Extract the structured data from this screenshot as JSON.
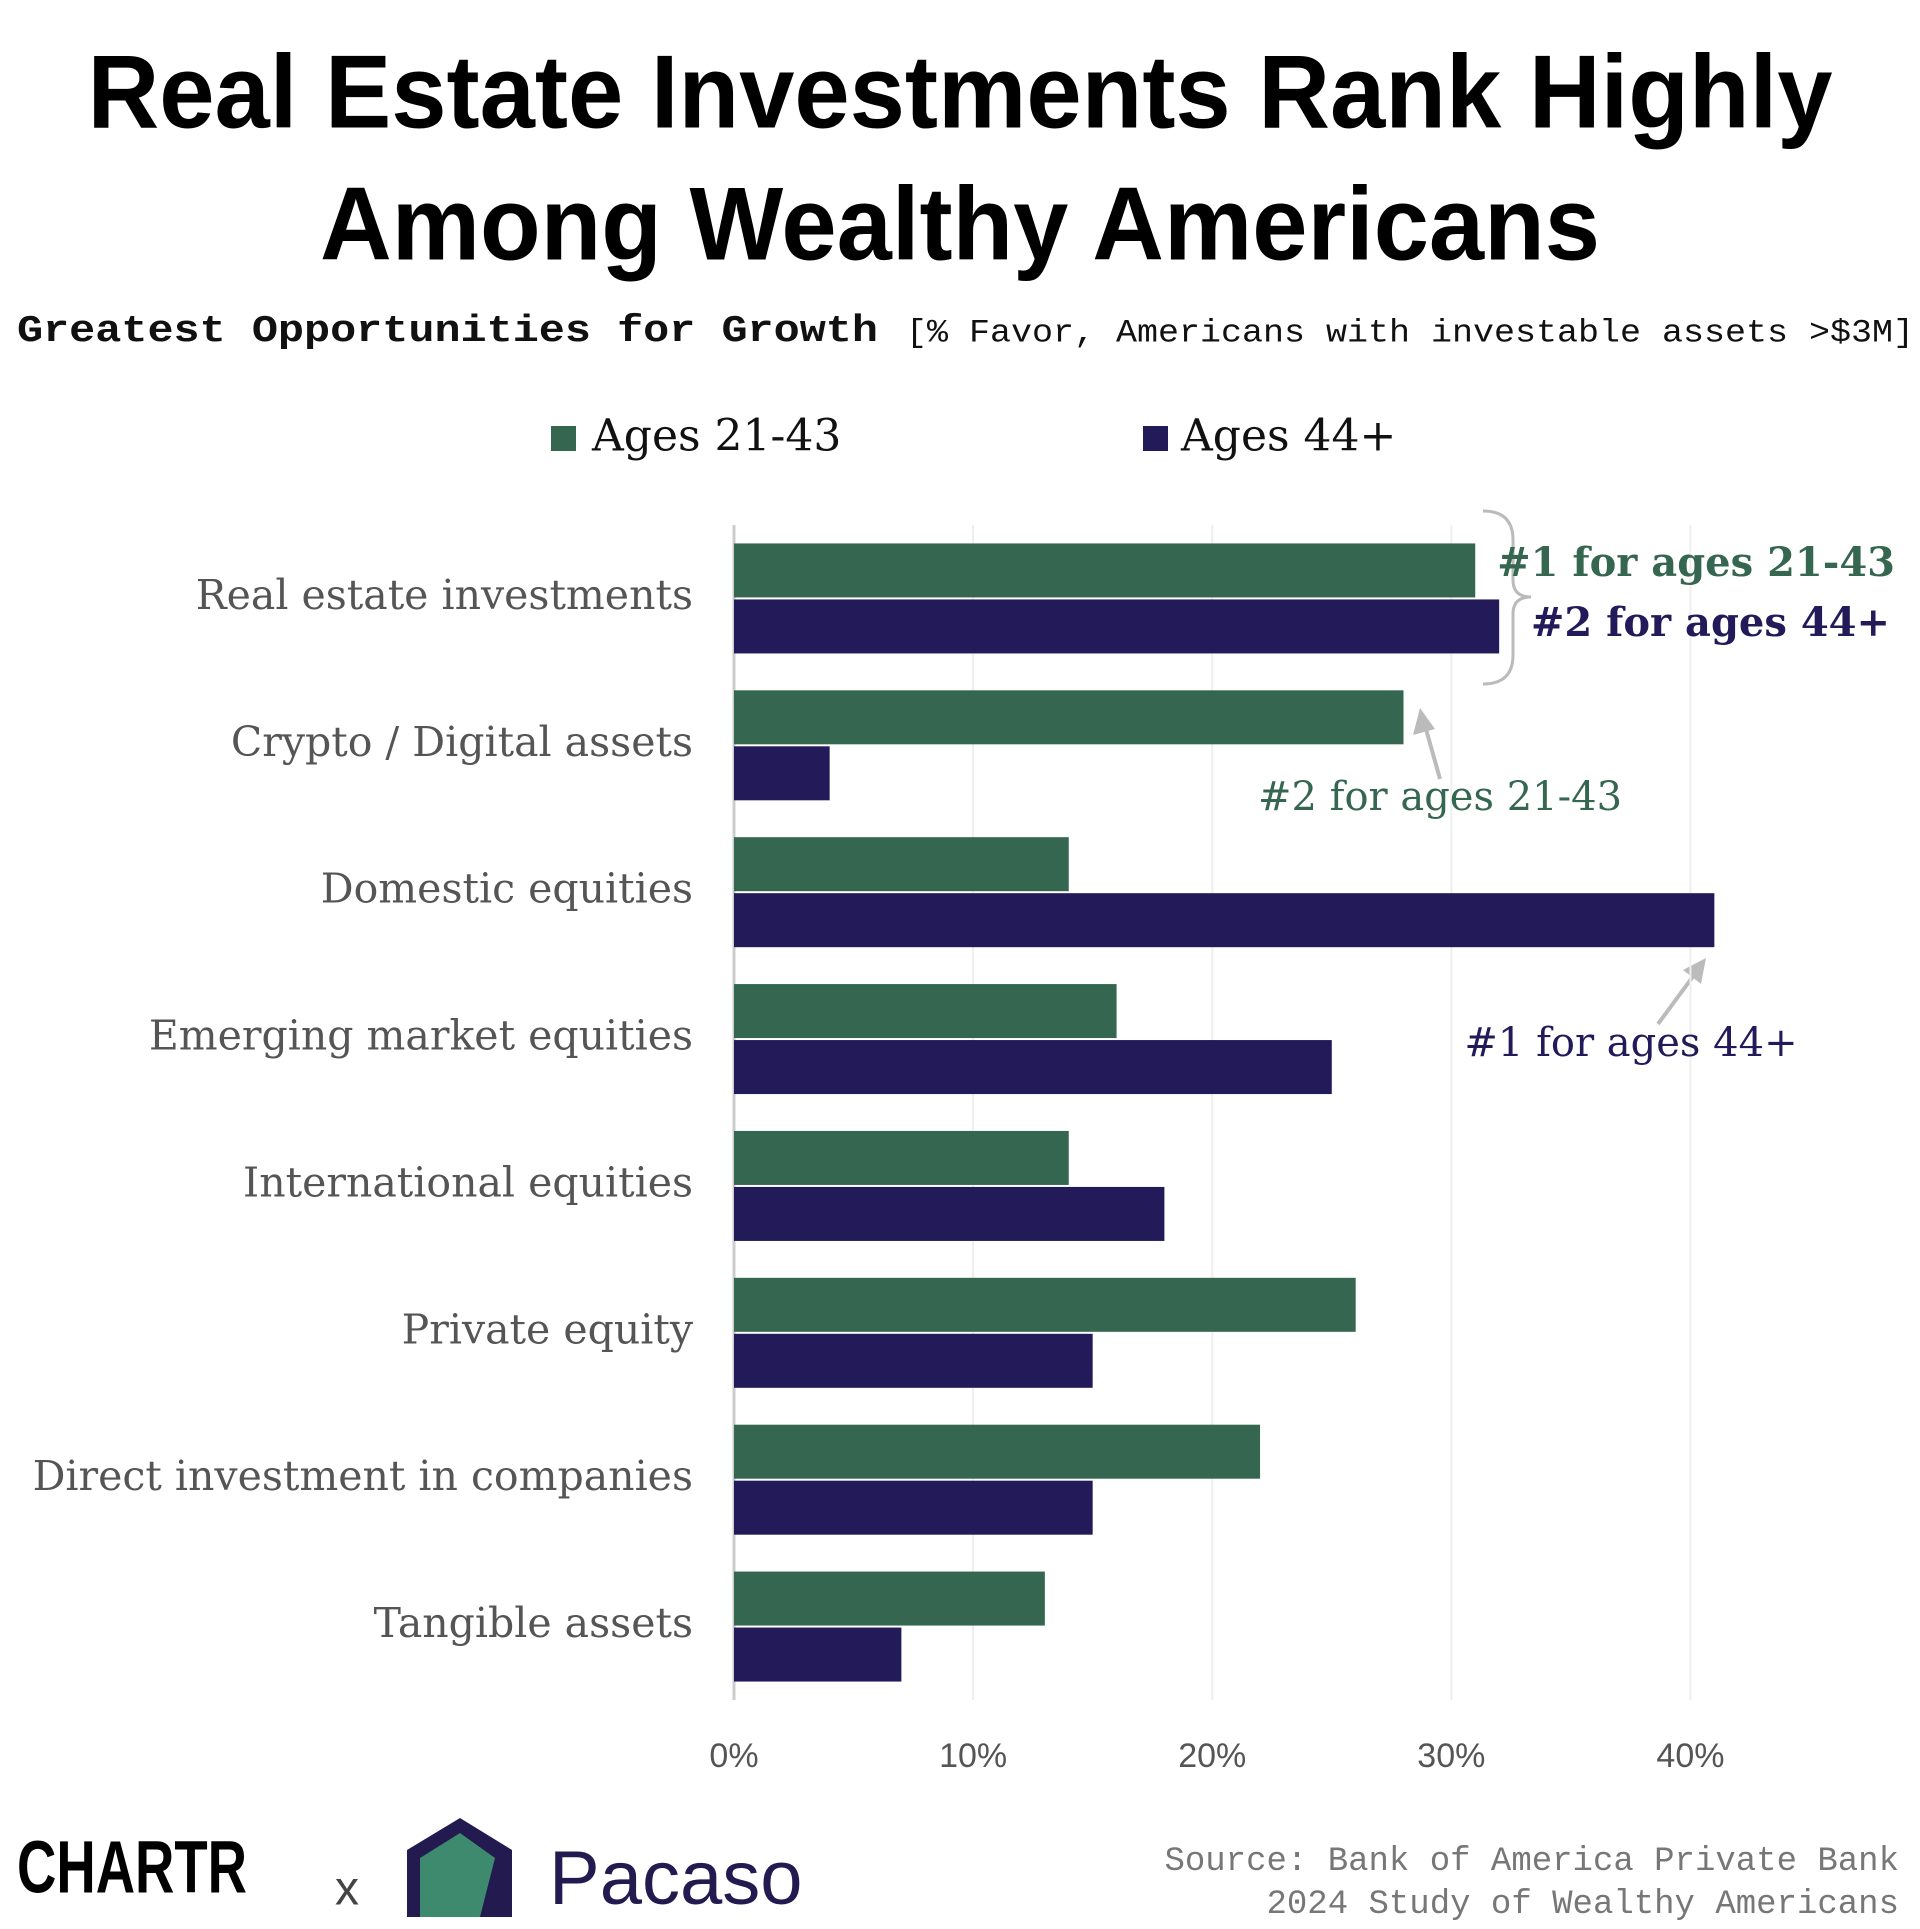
{
  "chart_data": {
    "type": "bar",
    "orientation": "horizontal",
    "title": [
      "Real Estate Investments Rank Highly",
      "Among Wealthy Americans"
    ],
    "subtitle": "Greatest Opportunities for Growth",
    "subtitle_note": "[% Favor, Americans with investable assets >$3M]",
    "categories": [
      "Real estate investments",
      "Crypto / Digital assets",
      "Domestic equities",
      "Emerging market equities",
      "International equities",
      "Private equity",
      "Direct investment in companies",
      "Tangible assets"
    ],
    "series": [
      {
        "name": "Ages 21-43",
        "color": "#35664f",
        "values": [
          31,
          28,
          14,
          16,
          14,
          26,
          22,
          13
        ]
      },
      {
        "name": "Ages 44+",
        "color": "#231a5a",
        "values": [
          32,
          4,
          41,
          25,
          18,
          15,
          15,
          7
        ]
      }
    ],
    "xlim": [
      0,
      45
    ],
    "xticks": [
      {
        "value": 0,
        "label": "0%"
      },
      {
        "value": 10,
        "label": "10%"
      },
      {
        "value": 20,
        "label": "20%"
      },
      {
        "value": 30,
        "label": "30%"
      },
      {
        "value": 40,
        "label": "40%"
      }
    ],
    "grid": true,
    "legend": "top",
    "annotations": [
      {
        "text": "#1 for ages 21-43",
        "color": "#35664f"
      },
      {
        "text": "#2 for ages 44+",
        "color": "#231a5a"
      },
      {
        "text": "#2 for ages 21-43",
        "color": "#35664f"
      },
      {
        "text": "#1 for ages 44+",
        "color": "#231a5a"
      }
    ],
    "source": [
      "Source: Bank of America Private Bank",
      "2024 Study of Wealthy Americans"
    ],
    "branding": [
      "CHARTR",
      "x",
      "Pacaso"
    ]
  }
}
